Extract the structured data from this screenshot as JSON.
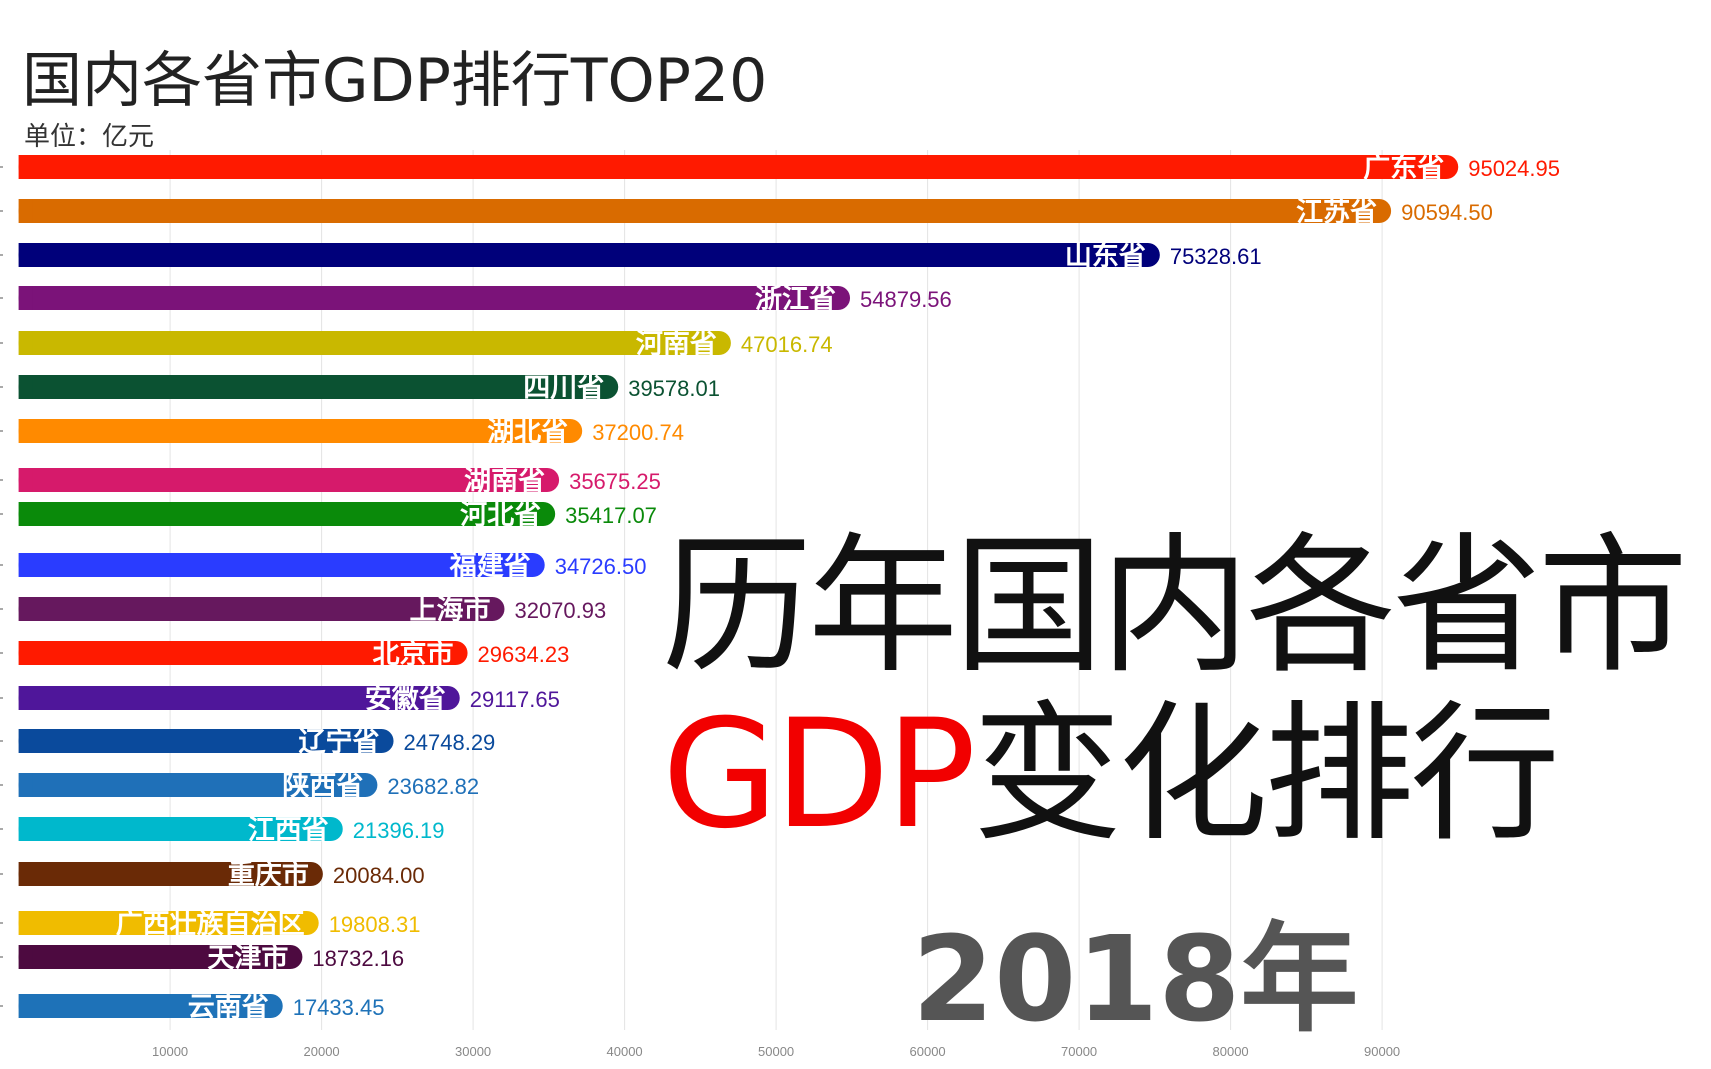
{
  "chart_data": {
    "type": "bar",
    "orientation": "horizontal",
    "title": "国内各省市GDP排行TOP20",
    "subtitle": "单位：亿元",
    "xlim": [
      0,
      100000
    ],
    "xticks": [
      10000,
      20000,
      30000,
      40000,
      50000,
      60000,
      70000,
      80000,
      90000
    ],
    "grid": true,
    "year": "2018年",
    "categories": [
      "广东省",
      "江苏省",
      "山东省",
      "浙江省",
      "河南省",
      "四川省",
      "湖北省",
      "湖南省",
      "河北省",
      "福建省",
      "上海市",
      "北京市",
      "安徽省",
      "辽宁省",
      "陕西省",
      "江西省",
      "重庆市",
      "广西壮族自治区",
      "天津市",
      "云南省"
    ],
    "values": [
      95024.95,
      90594.5,
      75328.61,
      54879.56,
      47016.74,
      39578.01,
      37200.74,
      35675.25,
      35417.07,
      34726.5,
      32070.93,
      29634.23,
      29117.65,
      24748.29,
      23682.82,
      21396.19,
      20084.0,
      19808.31,
      18732.16,
      17433.45
    ],
    "value_labels": [
      "95024.95",
      "90594.50",
      "75328.61",
      "54879.56",
      "47016.74",
      "39578.01",
      "37200.74",
      "35675.25",
      "35417.07",
      "34726.50",
      "32070.93",
      "29634.23",
      "29117.65",
      "24748.29",
      "23682.82",
      "21396.19",
      "20084.00",
      "19808.31",
      "18732.16",
      "17433.45"
    ],
    "colors": [
      "#ff1a00",
      "#d96b00",
      "#00007a",
      "#7b1379",
      "#c9b800",
      "#0b5232",
      "#ff8a00",
      "#d61a6b",
      "#0a8a0a",
      "#2a3cff",
      "#66185e",
      "#ff1a00",
      "#4f169a",
      "#0a4a9c",
      "#1f70b8",
      "#00b8cc",
      "#6a2a06",
      "#f0bc00",
      "#4d0a40",
      "#1e72b8"
    ]
  },
  "overlay": {
    "line1": "历年国内各省市",
    "line2_red": "GDP",
    "line2_rest": "变化排行"
  }
}
